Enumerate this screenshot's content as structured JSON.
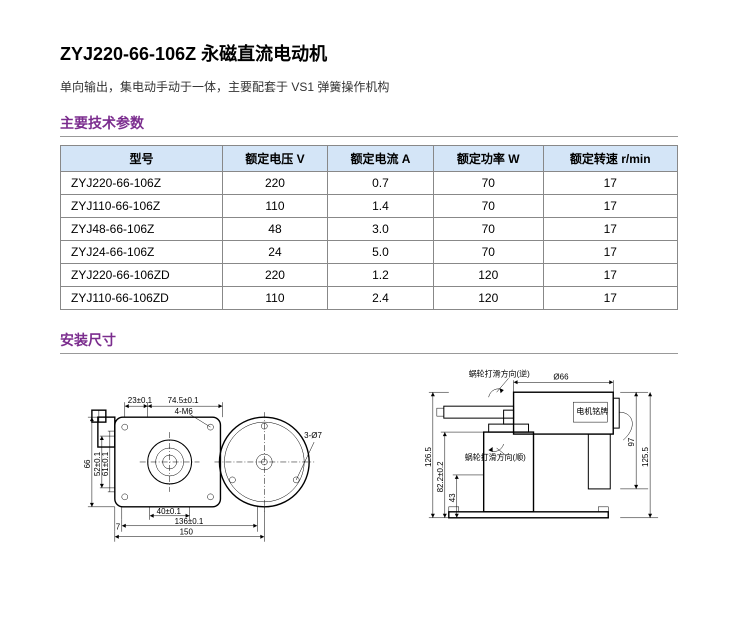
{
  "title": "ZYJ220-66-106Z 永磁直流电动机",
  "description": "单向输出，集电动手动于一体，主要配套于 VS1 弹簧操作机构",
  "spec_heading": "主要技术参数",
  "dim_heading": "安装尺寸",
  "table": {
    "headers": [
      "型号",
      "额定电压 V",
      "额定电流 A",
      "额定功率 W",
      "额定转速 r/min"
    ],
    "rows": [
      [
        "ZYJ220-66-106Z",
        "220",
        "0.7",
        "70",
        "17"
      ],
      [
        "ZYJ110-66-106Z",
        "110",
        "1.4",
        "70",
        "17"
      ],
      [
        "ZYJ48-66-106Z",
        "48",
        "3.0",
        "70",
        "17"
      ],
      [
        "ZYJ24-66-106Z",
        "24",
        "5.0",
        "70",
        "17"
      ],
      [
        "ZYJ220-66-106ZD",
        "220",
        "1.2",
        "120",
        "17"
      ],
      [
        "ZYJ110-66-106ZD",
        "110",
        "2.4",
        "120",
        "17"
      ]
    ]
  },
  "left_drawing": {
    "dims": {
      "d23": "23±0.1",
      "d74_5": "74.5±0.1",
      "d4m6": "4-M6",
      "d3phi7": "3-Ø7",
      "d66": "66",
      "d52": "52±0.1",
      "d61": "61±0.1",
      "d40": "40±0.1",
      "d7": "7",
      "d136": "136±0.1",
      "d150": "150"
    }
  },
  "right_drawing": {
    "labels": {
      "cw": "蜗轮打滑方向(逆)",
      "ccw": "蜗轮打滑方向(顺)",
      "plate": "电机铭牌"
    },
    "dims": {
      "phi66": "Ø66",
      "d126_5": "126.5",
      "d82_2": "82.2±0.2",
      "d43": "43",
      "d97": "97",
      "d125_5": "125.5"
    }
  }
}
